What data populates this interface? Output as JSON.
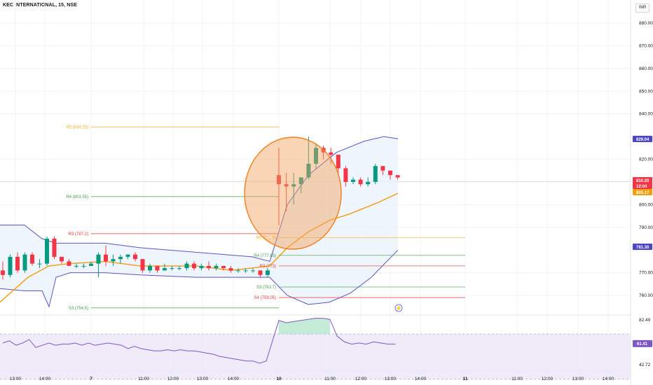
{
  "header": {
    "title": "KEC INTERNATIONAL, 15, NSE",
    "currency": "INR"
  },
  "chart_data": {
    "type": "candlestick",
    "price_axis": {
      "ylim": [
        754,
        885
      ],
      "ticks": [
        880,
        870,
        860,
        850,
        840,
        820,
        800,
        790,
        770,
        760
      ],
      "tick_labels": [
        "880.00",
        "870.00",
        "860.00",
        "850.00",
        "840.00",
        "820.00",
        "800.00",
        "790.00",
        "770.00",
        "760.00"
      ]
    },
    "time_axis": {
      "ticks": [
        "13:00",
        "14:00",
        "7",
        "11:00",
        "12:00",
        "13:00",
        "14:00",
        "10",
        "11:00",
        "12:00",
        "13:00",
        "14:00",
        "11",
        "11:00",
        "12:00",
        "13:00",
        "14:00"
      ]
    },
    "candles": [
      {
        "o": 771,
        "h": 775,
        "l": 767,
        "c": 769
      },
      {
        "o": 769,
        "h": 778,
        "l": 768,
        "c": 777
      },
      {
        "o": 777,
        "h": 779,
        "l": 770,
        "c": 771
      },
      {
        "o": 771,
        "h": 779,
        "l": 770,
        "c": 778
      },
      {
        "o": 778,
        "h": 779,
        "l": 773,
        "c": 774
      },
      {
        "o": 774,
        "h": 776,
        "l": 772,
        "c": 774
      },
      {
        "o": 774,
        "h": 786,
        "l": 773,
        "c": 785
      },
      {
        "o": 785,
        "h": 786,
        "l": 776,
        "c": 777
      },
      {
        "o": 777,
        "h": 777,
        "l": 774,
        "c": 775
      },
      {
        "o": 775,
        "h": 776,
        "l": 773,
        "c": 773
      },
      {
        "o": 773,
        "h": 774,
        "l": 772,
        "c": 773
      },
      {
        "o": 773,
        "h": 774,
        "l": 772,
        "c": 773
      },
      {
        "o": 773,
        "h": 775,
        "l": 773,
        "c": 774
      },
      {
        "o": 774,
        "h": 779,
        "l": 768,
        "c": 778
      },
      {
        "o": 778,
        "h": 782,
        "l": 773,
        "c": 775
      },
      {
        "o": 775,
        "h": 778,
        "l": 773,
        "c": 776
      },
      {
        "o": 776,
        "h": 778,
        "l": 774,
        "c": 777
      },
      {
        "o": 777,
        "h": 778,
        "l": 776,
        "c": 778
      },
      {
        "o": 778,
        "h": 779,
        "l": 775,
        "c": 776
      },
      {
        "o": 776,
        "h": 776,
        "l": 770,
        "c": 771
      },
      {
        "o": 771,
        "h": 774,
        "l": 770,
        "c": 773
      },
      {
        "o": 773,
        "h": 773,
        "l": 770,
        "c": 771
      },
      {
        "o": 771,
        "h": 774,
        "l": 771,
        "c": 772
      },
      {
        "o": 772,
        "h": 773,
        "l": 771,
        "c": 772
      },
      {
        "o": 772,
        "h": 773,
        "l": 771,
        "c": 772
      },
      {
        "o": 772,
        "h": 775,
        "l": 771,
        "c": 774
      },
      {
        "o": 774,
        "h": 775,
        "l": 771,
        "c": 772
      },
      {
        "o": 772,
        "h": 774,
        "l": 771,
        "c": 773
      },
      {
        "o": 773,
        "h": 775,
        "l": 771,
        "c": 772
      },
      {
        "o": 772,
        "h": 774,
        "l": 771,
        "c": 773
      },
      {
        "o": 773,
        "h": 773,
        "l": 771,
        "c": 772
      },
      {
        "o": 772,
        "h": 773,
        "l": 770,
        "c": 771
      },
      {
        "o": 771,
        "h": 772,
        "l": 770,
        "c": 771
      },
      {
        "o": 771,
        "h": 772,
        "l": 770,
        "c": 771
      },
      {
        "o": 771,
        "h": 772,
        "l": 770,
        "c": 771
      },
      {
        "o": 771,
        "h": 771,
        "l": 768,
        "c": 769
      },
      {
        "o": 769,
        "h": 772,
        "l": 768,
        "c": 771
      },
      {
        "o": 813,
        "h": 825,
        "l": 791,
        "c": 809
      },
      {
        "o": 809,
        "h": 814,
        "l": 797,
        "c": 808
      },
      {
        "o": 808,
        "h": 814,
        "l": 800,
        "c": 809
      },
      {
        "o": 809,
        "h": 812,
        "l": 805,
        "c": 812
      },
      {
        "o": 812,
        "h": 830,
        "l": 811,
        "c": 818
      },
      {
        "o": 818,
        "h": 827,
        "l": 816,
        "c": 825
      },
      {
        "o": 825,
        "h": 826,
        "l": 820,
        "c": 823
      },
      {
        "o": 823,
        "h": 825,
        "l": 818,
        "c": 822
      },
      {
        "o": 822,
        "h": 822,
        "l": 814,
        "c": 816
      },
      {
        "o": 816,
        "h": 817,
        "l": 808,
        "c": 810
      },
      {
        "o": 810,
        "h": 812,
        "l": 809,
        "c": 811
      },
      {
        "o": 811,
        "h": 812,
        "l": 808,
        "c": 809
      },
      {
        "o": 809,
        "h": 812,
        "l": 808,
        "c": 810
      },
      {
        "o": 810,
        "h": 818,
        "l": 809,
        "c": 817
      },
      {
        "o": 817,
        "h": 817,
        "l": 813,
        "c": 815
      },
      {
        "o": 815,
        "h": 815,
        "l": 811,
        "c": 813
      },
      {
        "o": 813,
        "h": 813,
        "l": 811,
        "c": 812
      }
    ],
    "bollinger": {
      "upper": [
        [
          0,
          791
        ],
        [
          35,
          791
        ],
        [
          60,
          785
        ],
        [
          80,
          783
        ],
        [
          100,
          783
        ],
        [
          150,
          783
        ],
        [
          200,
          781
        ],
        [
          280,
          779
        ],
        [
          360,
          777
        ],
        [
          385,
          775
        ],
        [
          410,
          800
        ],
        [
          440,
          813
        ],
        [
          480,
          823
        ],
        [
          520,
          828
        ],
        [
          548,
          830
        ],
        [
          568,
          829
        ]
      ],
      "lower": [
        [
          0,
          763
        ],
        [
          35,
          762
        ],
        [
          60,
          762
        ],
        [
          70,
          755
        ],
        [
          80,
          768
        ],
        [
          100,
          770
        ],
        [
          150,
          770
        ],
        [
          200,
          769
        ],
        [
          280,
          768
        ],
        [
          360,
          768
        ],
        [
          385,
          768
        ],
        [
          410,
          760
        ],
        [
          440,
          756
        ],
        [
          470,
          757
        ],
        [
          500,
          761
        ],
        [
          530,
          768
        ],
        [
          568,
          780
        ]
      ],
      "basis": [
        [
          0,
          757
        ],
        [
          40,
          768
        ],
        [
          70,
          773
        ],
        [
          100,
          774
        ],
        [
          150,
          775
        ],
        [
          200,
          773
        ],
        [
          280,
          773
        ],
        [
          330,
          771
        ],
        [
          385,
          773
        ],
        [
          410,
          781
        ],
        [
          440,
          788
        ],
        [
          470,
          793
        ],
        [
          500,
          796
        ],
        [
          540,
          801
        ],
        [
          568,
          805
        ]
      ]
    },
    "pivot_levels": [
      {
        "label": "R5 (834.25)",
        "value": 834.25,
        "color": "#f5b324"
      },
      {
        "label": "R4 (803.55)",
        "value": 803.55,
        "color": "#43a047"
      },
      {
        "label": "R3 (787.2)",
        "value": 787.2,
        "color": "#e53935"
      },
      {
        "label": "S3 (754.5)",
        "value": 754.5,
        "color": "#43a047"
      },
      {
        "label": "R5 (7_._5)",
        "value": 785.5,
        "color": "#f5b324"
      },
      {
        "label": "R4 (777.65)",
        "value": 777.65,
        "color": "#43a047"
      },
      {
        "label": "R3 (773)",
        "value": 773,
        "color": "#e53935"
      },
      {
        "label": "S3 (763.7)",
        "value": 763.7,
        "color": "#43a047"
      },
      {
        "label": "S4 (759.05)",
        "value": 759.05,
        "color": "#e53935"
      }
    ],
    "price_tags": [
      {
        "text": "829.04",
        "color": "#4a44c6"
      },
      {
        "text": "810.20",
        "color": "#f23645"
      },
      {
        "text": "12:04",
        "color": "#f23645"
      },
      {
        "text": "805.17",
        "color": "#f59e0b"
      },
      {
        "text": "781.30",
        "color": "#4a44c6"
      }
    ],
    "rsi": {
      "ticks": [
        "82.49",
        "42.72"
      ],
      "tag": "61.41",
      "values": [
        62,
        64,
        60,
        62,
        65,
        58,
        60,
        62,
        60,
        61,
        61,
        62,
        60,
        62,
        60,
        61,
        62,
        61,
        60,
        57,
        59,
        57,
        56,
        55,
        55,
        56,
        55,
        56,
        55,
        55,
        54,
        53,
        52,
        50,
        49,
        48,
        47,
        46,
        46,
        44,
        46,
        82,
        80,
        81,
        82,
        83,
        84,
        84,
        83,
        68,
        63,
        61,
        62,
        61,
        63,
        62,
        61,
        61
      ]
    },
    "grid": true,
    "legend": "none"
  }
}
